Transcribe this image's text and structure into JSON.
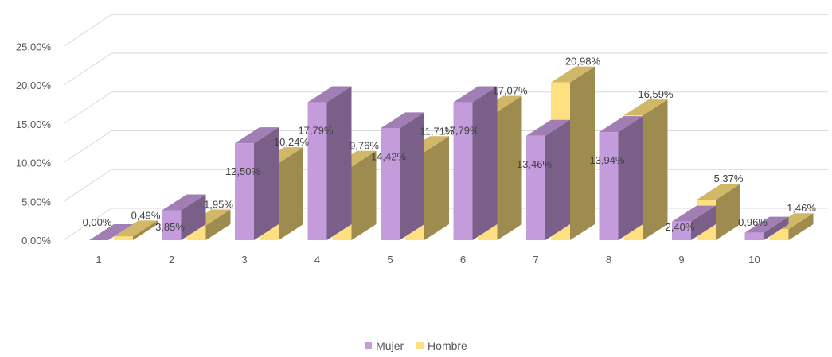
{
  "chart_data": {
    "type": "bar",
    "categories": [
      "1",
      "2",
      "3",
      "4",
      "5",
      "6",
      "7",
      "8",
      "9",
      "10"
    ],
    "series": [
      {
        "name": "Mujer",
        "values": [
          0.0,
          3.85,
          12.5,
          17.79,
          14.42,
          17.79,
          13.46,
          13.94,
          2.4,
          0.96
        ],
        "labels": [
          "0,00%",
          "3,85%",
          "12,50%",
          "17,79%",
          "14,42%",
          "17,79%",
          "13,46%",
          "13,94%",
          "2,40%",
          "0,96%"
        ],
        "color": "#C49BDB"
      },
      {
        "name": "Hombre",
        "values": [
          0.49,
          1.95,
          10.24,
          9.76,
          11.71,
          17.07,
          20.98,
          16.59,
          5.37,
          1.46
        ],
        "labels": [
          "0,49%",
          "1,95%",
          "10,24%",
          "9,76%",
          "11,71%",
          "17,07%",
          "20,98%",
          "16,59%",
          "5,37%",
          "1,46%"
        ],
        "color": "#FFE080"
      }
    ],
    "y_ticks": [
      "0,00%",
      "5,00%",
      "10,00%",
      "15,00%",
      "20,00%",
      "25,00%"
    ],
    "ylim": [
      0,
      25
    ],
    "grid": true,
    "legend_position": "bottom",
    "three_d": true
  },
  "legend": {
    "mujer": "Mujer",
    "hombre": "Hombre"
  },
  "colors": {
    "mujer": "#C49BDB",
    "hombre": "#FFE080"
  }
}
